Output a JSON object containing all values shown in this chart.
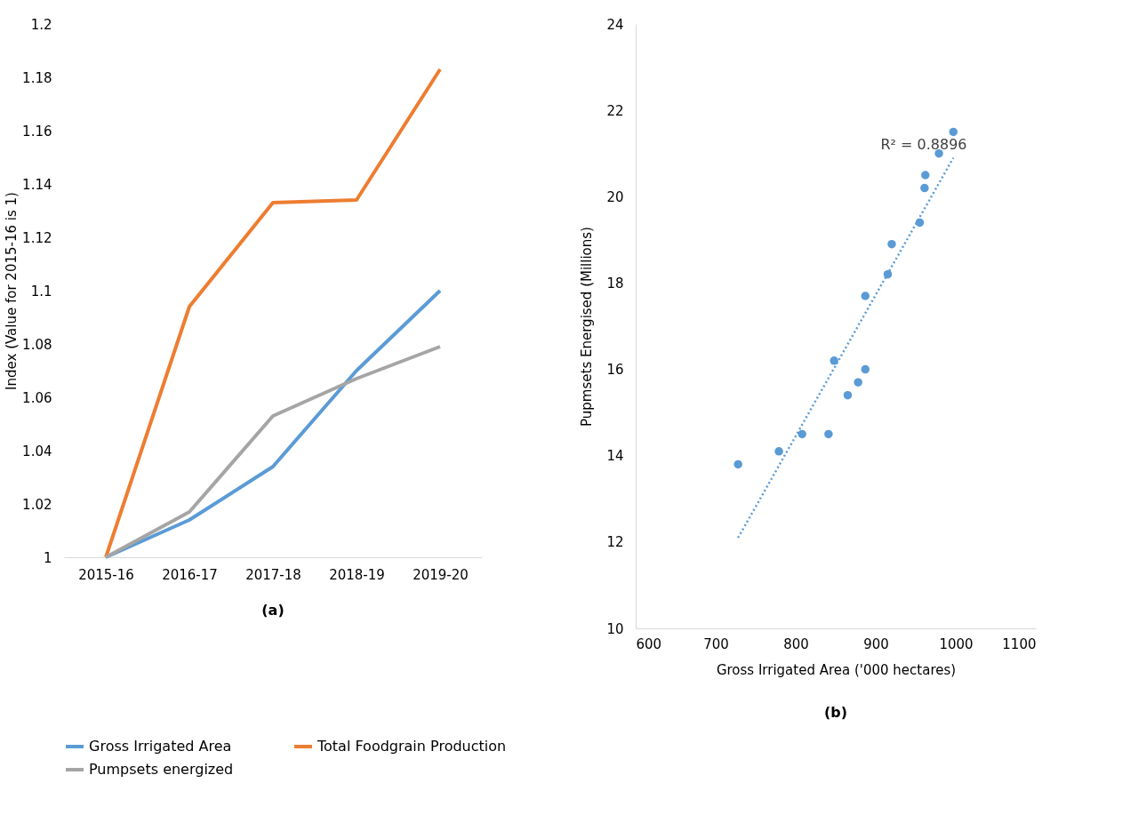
{
  "chart_data": [
    {
      "type": "line",
      "ylabel": "Index (Value for 2015-16 is 1)",
      "categories": [
        "2015-16",
        "2016-17",
        "2017-18",
        "2018-19",
        "2019-20"
      ],
      "series": [
        {
          "name": "Gross Irrigated Area",
          "color": "#5b9bd5",
          "values": [
            1,
            1.014,
            1.034,
            1.07,
            1.1
          ]
        },
        {
          "name": "Total Foodgrain Production",
          "color": "#ed7d31",
          "values": [
            1,
            1.094,
            1.133,
            1.134,
            1.183
          ]
        },
        {
          "name": "Pumpsets energized",
          "color": "#a5a5a5",
          "values": [
            1,
            1.017,
            1.053,
            1.067,
            1.079
          ]
        }
      ],
      "ylim": [
        1,
        1.2
      ],
      "yticks": [
        1,
        1.02,
        1.04,
        1.06,
        1.08,
        1.1,
        1.12,
        1.14,
        1.16,
        1.18,
        1.2
      ],
      "grid": false,
      "legend": "bottom",
      "marker": "none",
      "line_style": "solid",
      "annotations": [
        "(a)"
      ]
    },
    {
      "type": "scatter",
      "xlabel": "Gross Irrigated Area ('000 hectares)",
      "ylabel": "Pupmsets Energised (Millions)",
      "series": [
        {
          "color": "#5b9bd5",
          "marker": "circle",
          "x": [
            997,
            979,
            962,
            961,
            955,
            920,
            915,
            887,
            848,
            887,
            878,
            865,
            841,
            808,
            779,
            728
          ],
          "values": [
            21.5,
            21.0,
            20.5,
            20.2,
            19.4,
            18.9,
            18.2,
            17.7,
            16.2,
            16.0,
            15.7,
            15.4,
            14.5,
            14.5,
            14.1,
            13.8
          ]
        },
        {
          "type": "line",
          "color": "#5b9bd5",
          "line_style": "dotted",
          "x": [
            728,
            997
          ],
          "values": [
            12.1,
            20.9
          ]
        }
      ],
      "xlim": [
        600,
        1100
      ],
      "xticks": [
        600,
        700,
        800,
        900,
        1000,
        1100
      ],
      "ylim": [
        10,
        24
      ],
      "yticks": [
        10,
        12,
        14,
        16,
        18,
        20,
        22,
        24
      ],
      "grid": false,
      "annotations": [
        "R² = 0.8896",
        "(b)"
      ]
    }
  ]
}
